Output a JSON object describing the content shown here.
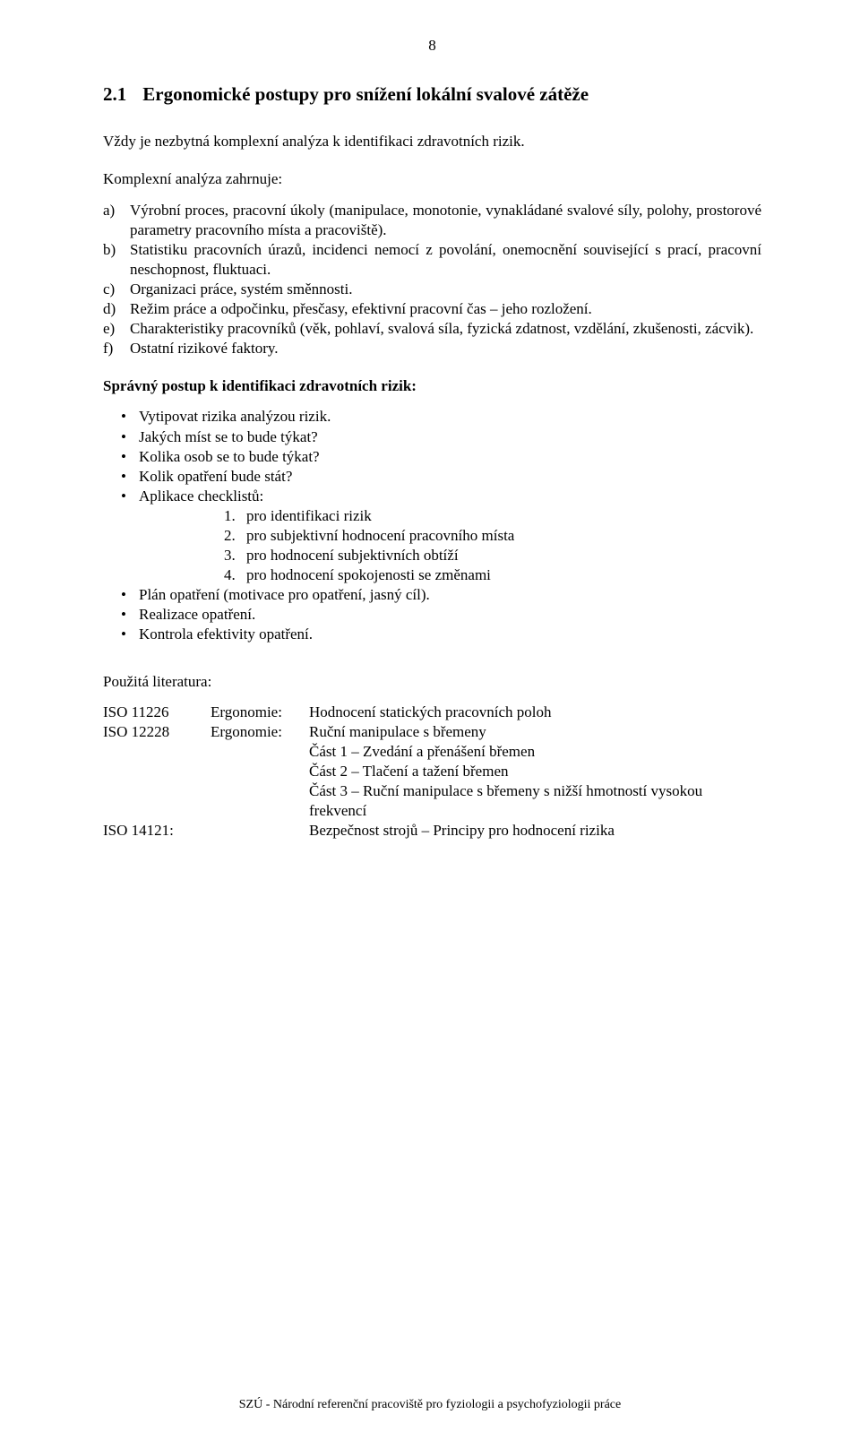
{
  "page_number": "8",
  "heading": {
    "num": "2.1",
    "text": "Ergonomické postupy pro snížení lokální svalové zátěže"
  },
  "intro": "Vždy je nezbytná komplexní analýza k identifikaci zdravotních rizik.",
  "lead": "Komplexní analýza zahrnuje:",
  "letters": [
    {
      "m": "a)",
      "t": "Výrobní proces, pracovní úkoly (manipulace, monotonie, vynakládané svalové síly, polohy, prostorové parametry pracovního místa a pracoviště)."
    },
    {
      "m": "b)",
      "t": "Statistiku pracovních úrazů, incidenci nemocí z povolání, onemocnění související s prací, pracovní neschopnost, fluktuaci."
    },
    {
      "m": "c)",
      "t": "Organizaci práce, systém směnnosti."
    },
    {
      "m": "d)",
      "t": "Režim práce a odpočinku, přesčasy, efektivní pracovní čas – jeho rozložení."
    },
    {
      "m": "e)",
      "t": "Charakteristiky pracovníků (věk, pohlaví, svalová síla, fyzická zdatnost, vzdělání, zkušenosti, zácvik)."
    },
    {
      "m": "f)",
      "t": "Ostatní rizikové faktory."
    }
  ],
  "subheading": "Správný postup k identifikaci zdravotních rizik:",
  "bullets": [
    "Vytipovat rizika analýzou rizik.",
    "Jakých míst se to bude týkat?",
    "Kolika osob se to bude týkat?",
    "Kolik opatření bude stát?",
    "Aplikace checklistů:"
  ],
  "numbered": [
    {
      "m": "1.",
      "t": "pro identifikaci rizik"
    },
    {
      "m": "2.",
      "t": "pro subjektivní hodnocení pracovního místa"
    },
    {
      "m": "3.",
      "t": "pro hodnocení subjektivních obtíží"
    },
    {
      "m": "4.",
      "t": "pro hodnocení spokojenosti se změnami"
    }
  ],
  "bullets2": [
    "Plán opatření (motivace pro opatření, jasný cíl).",
    "Realizace opatření.",
    "Kontrola efektivity opatření."
  ],
  "lit_header": "Použitá literatura:",
  "lit": [
    {
      "c1": "ISO 11226",
      "c2": "Ergonomie:",
      "c3": "Hodnocení statických pracovních poloh"
    },
    {
      "c1": "ISO 12228",
      "c2": "Ergonomie:",
      "c3": "Ruční manipulace s břemeny"
    },
    {
      "c1": "",
      "c2": "",
      "c3": "Část 1 – Zvedání a přenášení břemen"
    },
    {
      "c1": "",
      "c2": "",
      "c3": "Část 2 – Tlačení a tažení břemen"
    },
    {
      "c1": "",
      "c2": "",
      "c3": "Část 3 – Ruční manipulace s břemeny s nižší hmotností vysokou frekvencí"
    },
    {
      "c1": "ISO 14121:",
      "c2": "",
      "c3": "Bezpečnost strojů – Principy pro hodnocení rizika"
    }
  ],
  "footer": "SZÚ - Národní referenční pracoviště pro fyziologii a psychofyziologii práce"
}
